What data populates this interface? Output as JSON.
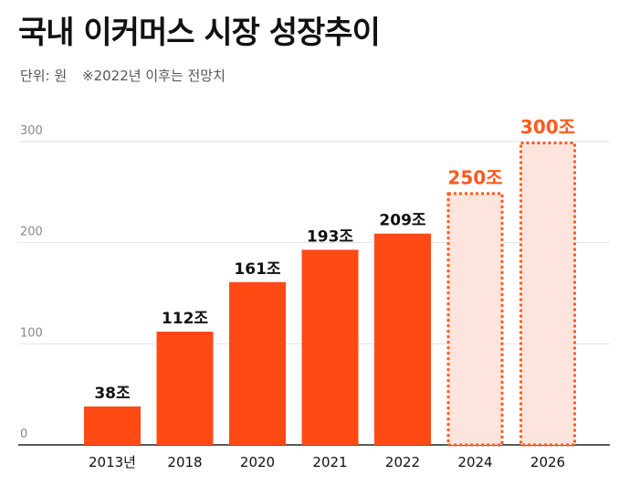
{
  "header": {
    "title": "국내 이커머스 시장 성장추이",
    "unit_note": "단위: 원",
    "forecast_note": "※2022년 이후는 전망치"
  },
  "colors": {
    "bar": "#ff4a14",
    "forecast_stroke": "#ff5a1f",
    "forecast_fill": "#fde4dc",
    "grid": "#e2e2e2",
    "axis": "#222222"
  },
  "chart_data": {
    "type": "bar",
    "title": "국내 이커머스 시장 성장추이",
    "xlabel": "",
    "ylabel": "단위: 원",
    "ylim": [
      0,
      300
    ],
    "yticks": [
      0,
      100,
      200,
      300
    ],
    "grid": true,
    "categories": [
      "2013년",
      "2018",
      "2020",
      "2021",
      "2022",
      "2024",
      "2026"
    ],
    "values": [
      38,
      112,
      161,
      193,
      209,
      250,
      300
    ],
    "labels": [
      "38조",
      "112조",
      "161조",
      "193조",
      "209조",
      "250조",
      "300조"
    ],
    "forecast": [
      false,
      false,
      false,
      false,
      false,
      true,
      true
    ]
  }
}
